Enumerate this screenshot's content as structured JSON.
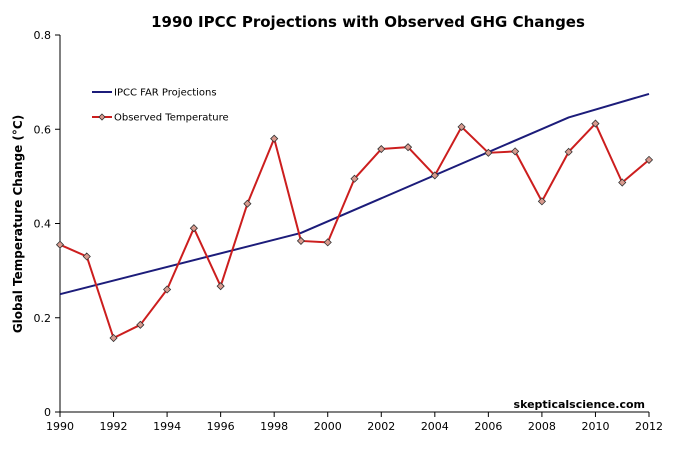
{
  "chart_data": {
    "type": "line",
    "title": "1990 IPCC Projections with Observed GHG Changes",
    "xlabel": "",
    "ylabel": "Global Temperature Change (°C)",
    "xlim": [
      1990,
      2012
    ],
    "ylim": [
      0,
      0.8
    ],
    "x_ticks": [
      "1990",
      "1992",
      "1994",
      "1996",
      "1998",
      "2000",
      "2002",
      "2004",
      "2006",
      "2008",
      "2010",
      "2012"
    ],
    "y_ticks": [
      "0",
      "0.2",
      "0.4",
      "0.6",
      "0.8"
    ],
    "grid": false,
    "legend_position": "top-left",
    "series": [
      {
        "name": "IPCC FAR Projections",
        "color": "#1c1c7a",
        "marker": "none",
        "x": [
          1990,
          1999,
          2009,
          2012
        ],
        "y": [
          0.25,
          0.38,
          0.625,
          0.675
        ]
      },
      {
        "name": "Observed Temperature",
        "color": "#cc1e1e",
        "marker": "diamond",
        "x": [
          1990,
          1991,
          1992,
          1993,
          1994,
          1995,
          1996,
          1997,
          1998,
          1999,
          2000,
          2001,
          2002,
          2003,
          2004,
          2005,
          2006,
          2007,
          2008,
          2009,
          2010,
          2011,
          2012
        ],
        "y": [
          0.355,
          0.33,
          0.157,
          0.185,
          0.26,
          0.39,
          0.267,
          0.442,
          0.58,
          0.363,
          0.36,
          0.495,
          0.558,
          0.562,
          0.502,
          0.605,
          0.55,
          0.553,
          0.447,
          0.552,
          0.612,
          0.487,
          0.535
        ]
      }
    ]
  },
  "watermark": "skepticalscience.com"
}
